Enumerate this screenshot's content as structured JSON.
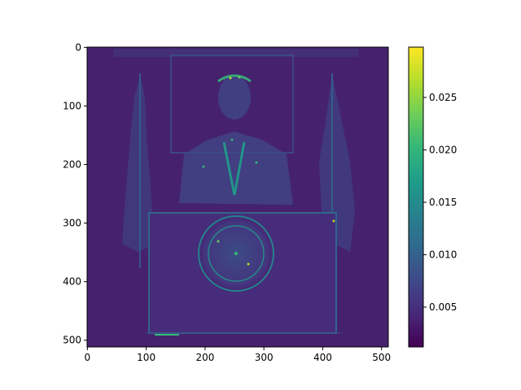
{
  "chart_data": [
    {
      "type": "heatmap",
      "title": "",
      "xlabel": "",
      "ylabel": "",
      "xlim": [
        0,
        511
      ],
      "ylim": [
        511,
        0
      ],
      "x_ticks": [
        0,
        100,
        200,
        300,
        400,
        500
      ],
      "y_ticks": [
        0,
        100,
        200,
        300,
        400,
        500
      ],
      "colormap": "viridis",
      "image_description_note_hidden": null,
      "grid": false
    },
    {
      "type": "colorbar",
      "range": [
        0.0012,
        0.0298
      ],
      "ticks": [
        0.005,
        0.01,
        0.015,
        0.02,
        0.025
      ],
      "tick_labels": [
        "0.005",
        "0.010",
        "0.015",
        "0.020",
        "0.025"
      ],
      "colors": [
        "#440154",
        "#482878",
        "#3e4a89",
        "#31688e",
        "#26828e",
        "#1f9e89",
        "#35b779",
        "#6ece58",
        "#b5de2b",
        "#fde725"
      ]
    }
  ]
}
